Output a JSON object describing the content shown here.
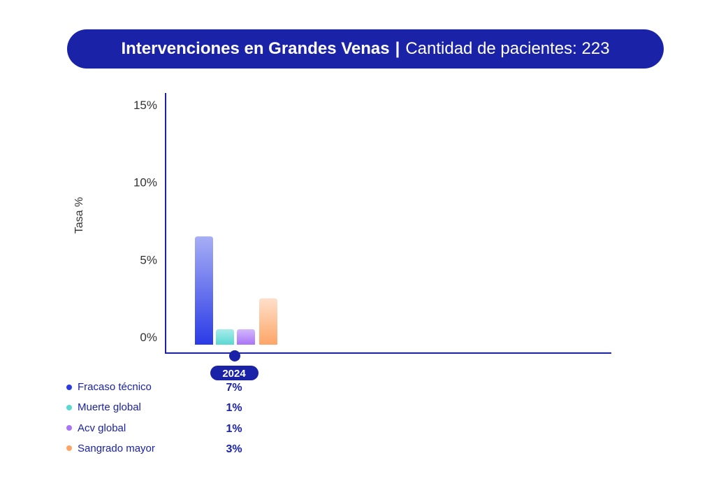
{
  "title": {
    "main": "Intervenciones en Grandes Venas",
    "separator": "|",
    "sub": "Cantidad de pacientes: 223"
  },
  "chart_data": {
    "type": "bar",
    "ylabel": "Tasa %",
    "ylim": [
      0,
      15
    ],
    "yticks": [
      0,
      5,
      10,
      15
    ],
    "ytick_labels": [
      "0%",
      "5%",
      "10%",
      "15%"
    ],
    "categories": [
      "2024"
    ],
    "series": [
      {
        "name": "Fracaso técnico",
        "values": [
          7
        ],
        "label": "7%",
        "color": "#2a3be6",
        "color_top": "#a7aef5"
      },
      {
        "name": "Muerte global",
        "values": [
          1
        ],
        "label": "1%",
        "color": "#5ad8d2",
        "color_top": "#a8ecea"
      },
      {
        "name": "Acv global",
        "values": [
          1
        ],
        "label": "1%",
        "color": "#a974f7",
        "color_top": "#d2b8fb"
      },
      {
        "name": "Sangrado mayor",
        "values": [
          3
        ],
        "label": "3%",
        "color": "#fea566",
        "color_top": "#ffe0cc"
      }
    ]
  }
}
